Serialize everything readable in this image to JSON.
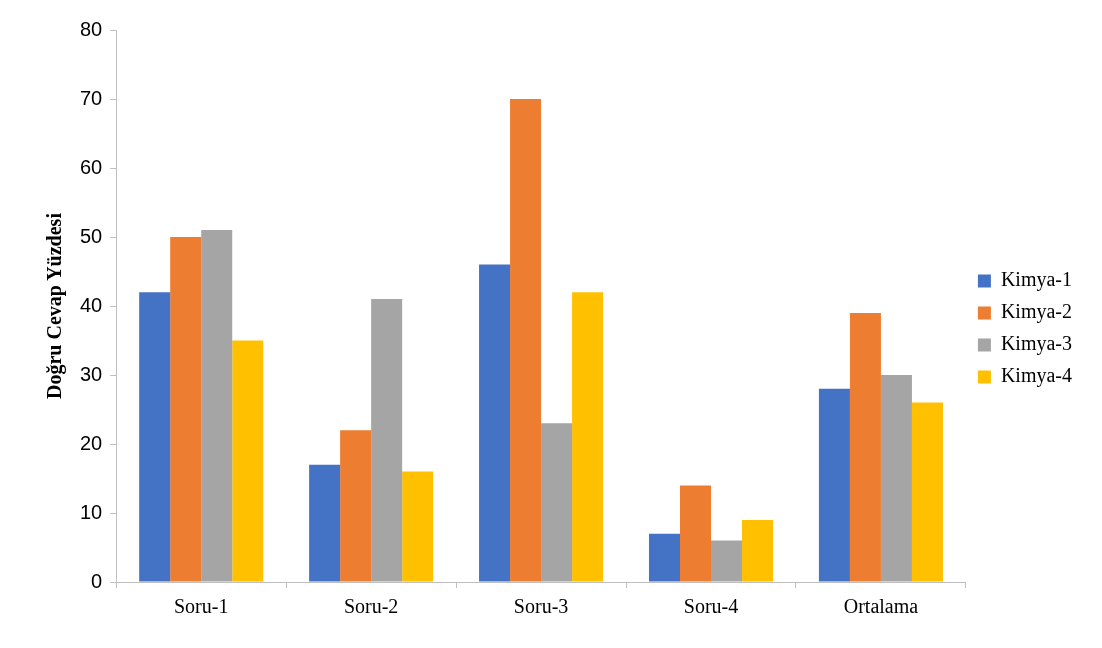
{
  "chart_data": {
    "type": "bar",
    "ylabel": "Doğru Cevap Yüzdesi",
    "categories": [
      "Soru-1",
      "Soru-2",
      "Soru-3",
      "Soru-4",
      "Ortalama"
    ],
    "series": [
      {
        "name": "Kimya-1",
        "color": "#4472c4",
        "values": [
          42,
          17,
          46,
          7,
          28
        ]
      },
      {
        "name": "Kimya-2",
        "color": "#ed7d31",
        "values": [
          50,
          22,
          70,
          14,
          39
        ]
      },
      {
        "name": "Kimya-3",
        "color": "#a5a5a5",
        "values": [
          51,
          41,
          23,
          6,
          30
        ]
      },
      {
        "name": "Kimya-4",
        "color": "#ffc000",
        "values": [
          35,
          16,
          42,
          9,
          26
        ]
      }
    ],
    "ylim": [
      0,
      80
    ],
    "yticks": [
      0,
      10,
      20,
      30,
      40,
      50,
      60,
      70,
      80
    ],
    "grid": false,
    "legend": "right"
  }
}
